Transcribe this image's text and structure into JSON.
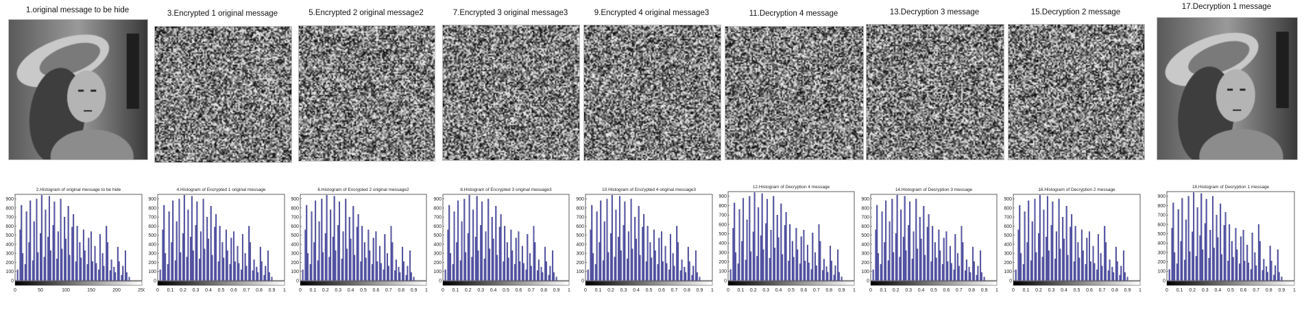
{
  "colors": {
    "bar": "#5a5ab4",
    "bar_edge": "#26265e",
    "axis": "#333333"
  },
  "panels": [
    {
      "image_title": "1.original message to be hide",
      "image_kind": "portrait",
      "hist_title": "2.Histogram of original message to be hide",
      "x_ticks": [
        "0",
        "50",
        "100",
        "150",
        "200",
        "250"
      ]
    },
    {
      "image_title": "3.Encrypted 1 original message",
      "image_kind": "noise",
      "hist_title": "4.Histogram of Encrypted 1 original message",
      "x_ticks": [
        "0",
        "0.1",
        "0.2",
        "0.3",
        "0.4",
        "0.5",
        "0.6",
        "0.7",
        "0.8",
        "0.9",
        "1"
      ]
    },
    {
      "image_title": "5.Encrypted 2 original message2",
      "image_kind": "noise",
      "hist_title": "6.Histogram of Encrypted 2 original message2",
      "x_ticks": [
        "0",
        "0.1",
        "0.2",
        "0.3",
        "0.4",
        "0.5",
        "0.6",
        "0.7",
        "0.8",
        "0.9",
        "1"
      ]
    },
    {
      "image_title": "7.Encrypted 3 original message3",
      "image_kind": "noise",
      "hist_title": "8.Histogram of Encrypted 3 original message3",
      "x_ticks": [
        "0",
        "0.1",
        "0.2",
        "0.3",
        "0.4",
        "0.5",
        "0.6",
        "0.7",
        "0.8",
        "0.9",
        "1"
      ]
    },
    {
      "image_title": "9.Encrypted 4 original message3",
      "image_kind": "noise",
      "hist_title": "10.Histogram of Encrypted 4 original message3",
      "x_ticks": [
        "0",
        "0.1",
        "0.2",
        "0.3",
        "0.4",
        "0.5",
        "0.6",
        "0.7",
        "0.8",
        "0.9",
        "1"
      ]
    },
    {
      "image_title": "11.Decryption 4 message",
      "image_kind": "noise",
      "hist_title": "12.Histogram of Decryption 4 message",
      "x_ticks": [
        "0",
        "0.1",
        "0.2",
        "0.3",
        "0.4",
        "0.5",
        "0.6",
        "0.7",
        "0.8",
        "0.9",
        "1"
      ]
    },
    {
      "image_title": "13.Decryption 3 message",
      "image_kind": "noise",
      "hist_title": "14.Histogram of Decryption 3 message",
      "x_ticks": [
        "0",
        "0.1",
        "0.2",
        "0.3",
        "0.4",
        "0.5",
        "0.6",
        "0.7",
        "0.8",
        "0.9",
        "1"
      ]
    },
    {
      "image_title": "15.Decryption 2 message",
      "image_kind": "noise",
      "hist_title": "16.Histogram of Decryption 2 message",
      "x_ticks": [
        "0",
        "0.1",
        "0.2",
        "0.3",
        "0.4",
        "0.5",
        "0.6",
        "0.7",
        "0.8",
        "0.9",
        "1"
      ]
    },
    {
      "image_title": "17.Decryption 1 message",
      "image_kind": "portrait",
      "hist_title": "18.Histogram of Decryption 1 message",
      "x_ticks": [
        "0",
        "0.1",
        "0.2",
        "0.3",
        "0.4",
        "0.5",
        "0.6",
        "0.7",
        "0.8",
        "0.9",
        "1"
      ]
    }
  ],
  "chart_data": {
    "type": "bar",
    "note_series": "intensity histogram, identical shape in all 9 panels",
    "y_ticks": [
      "0",
      "100",
      "200",
      "300",
      "400",
      "500",
      "600",
      "700",
      "800",
      "900"
    ],
    "ylim": [
      0,
      950
    ],
    "xlim": [
      0,
      1
    ],
    "x": [
      0.02,
      0.04,
      0.05,
      0.06,
      0.08,
      0.09,
      0.11,
      0.12,
      0.14,
      0.15,
      0.17,
      0.18,
      0.2,
      0.21,
      0.23,
      0.24,
      0.26,
      0.27,
      0.28,
      0.3,
      0.31,
      0.33,
      0.34,
      0.36,
      0.37,
      0.39,
      0.4,
      0.42,
      0.43,
      0.45,
      0.46,
      0.48,
      0.49,
      0.51,
      0.52,
      0.54,
      0.55,
      0.57,
      0.58,
      0.6,
      0.61,
      0.63,
      0.64,
      0.66,
      0.67,
      0.69,
      0.7,
      0.72,
      0.73,
      0.75,
      0.76,
      0.78,
      0.79,
      0.81,
      0.82,
      0.84,
      0.85,
      0.87,
      0.88,
      0.9
    ],
    "values": [
      120,
      560,
      830,
      300,
      180,
      760,
      420,
      880,
      220,
      650,
      900,
      310,
      520,
      940,
      260,
      780,
      480,
      930,
      330,
      610,
      870,
      240,
      540,
      900,
      350,
      700,
      460,
      820,
      280,
      590,
      730,
      210,
      600,
      420,
      250,
      560,
      330,
      180,
      470,
      540,
      210,
      380,
      190,
      120,
      510,
      300,
      160,
      600,
      420,
      110,
      230,
      150,
      90,
      370,
      210,
      60,
      160,
      330,
      90,
      40
    ]
  }
}
